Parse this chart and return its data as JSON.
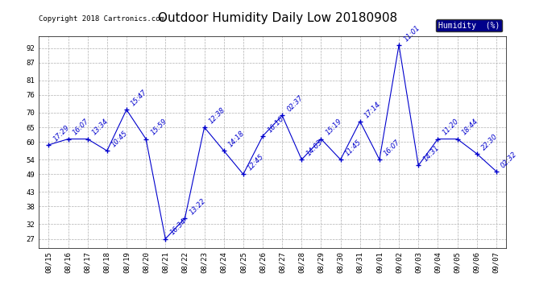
{
  "title": "Outdoor Humidity Daily Low 20180908",
  "copyright": "Copyright 2018 Cartronics.com",
  "legend_label": "Humidity  (%)",
  "x_labels": [
    "08/15",
    "08/16",
    "08/17",
    "08/18",
    "08/19",
    "08/20",
    "08/21",
    "08/22",
    "08/23",
    "08/24",
    "08/25",
    "08/26",
    "08/27",
    "08/28",
    "08/29",
    "08/30",
    "08/31",
    "09/01",
    "09/02",
    "09/03",
    "09/04",
    "09/05",
    "09/06",
    "09/07"
  ],
  "y_values": [
    59,
    61,
    61,
    57,
    71,
    61,
    27,
    34,
    65,
    57,
    49,
    62,
    69,
    54,
    61,
    54,
    67,
    54,
    93,
    52,
    61,
    61,
    56,
    50
  ],
  "point_labels": [
    "17:29",
    "16:07",
    "13:34",
    "10:45",
    "15:47",
    "15:59",
    "16:34",
    "13:22",
    "12:38",
    "14:18",
    "12:45",
    "16:16",
    "02:37",
    "14:03",
    "15:19",
    "11:45",
    "17:14",
    "16:07",
    "11:01",
    "14:31",
    "11:20",
    "18:44",
    "22:30",
    "02:32"
  ],
  "y_ticks": [
    27,
    32,
    38,
    43,
    49,
    54,
    60,
    65,
    70,
    76,
    81,
    87,
    92
  ],
  "line_color": "#0000cd",
  "marker_color": "#0000cd",
  "bg_color": "#ffffff",
  "grid_color": "#b0b0b0",
  "title_fontsize": 11,
  "label_fontsize": 6.5,
  "point_label_fontsize": 6,
  "copyright_fontsize": 6.5
}
